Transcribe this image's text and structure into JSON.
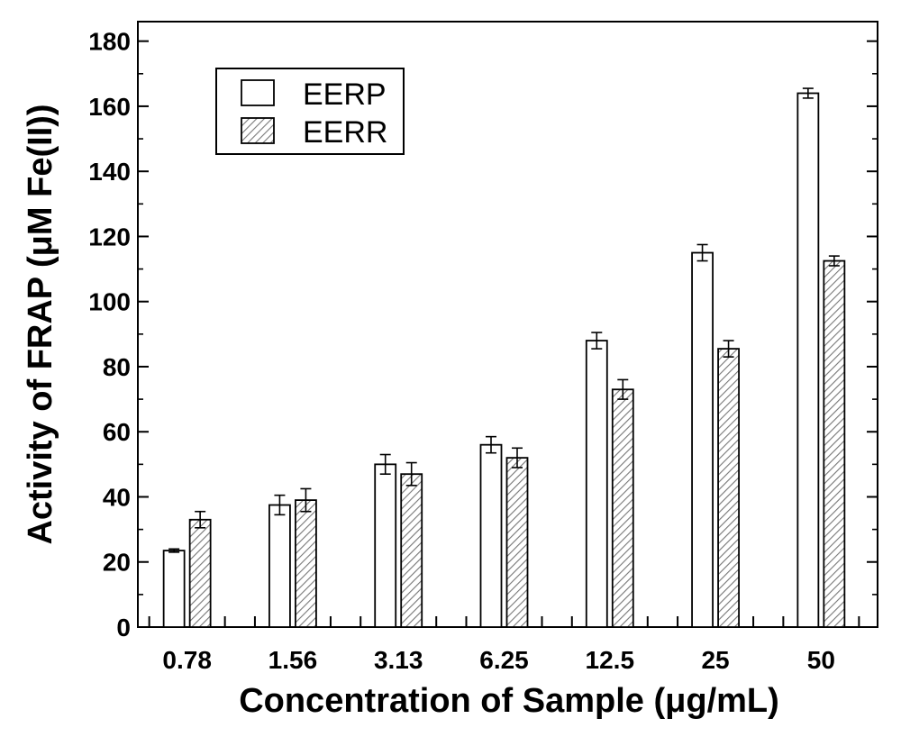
{
  "chart_data": {
    "type": "bar",
    "xlabel": "Concentration of Sample (μg/mL)",
    "ylabel": "Activity of FRAP (μM Fe(II))",
    "categories": [
      "0.78",
      "1.56",
      "3.13",
      "6.25",
      "12.5",
      "25",
      "50"
    ],
    "series": [
      {
        "name": "EERP",
        "values": [
          23.5,
          37.5,
          50.0,
          56.0,
          88.0,
          115.0,
          164.0
        ],
        "errors": [
          0.5,
          3.0,
          3.0,
          2.5,
          2.5,
          2.5,
          1.5
        ],
        "fill": "open"
      },
      {
        "name": "EERR",
        "values": [
          33.0,
          39.0,
          47.0,
          52.0,
          73.0,
          85.5,
          112.5
        ],
        "errors": [
          2.5,
          3.5,
          3.5,
          3.0,
          3.0,
          2.5,
          1.5
        ],
        "fill": "hatched"
      }
    ],
    "ylim": [
      0,
      186
    ],
    "yticks": [
      "0",
      "20",
      "40",
      "60",
      "80",
      "100",
      "120",
      "140",
      "160",
      "180"
    ],
    "legend_position": "top-left",
    "grid": false,
    "colors": {
      "axis": "#000000",
      "bar_edge": "#000000",
      "hatch": "#555555"
    }
  }
}
